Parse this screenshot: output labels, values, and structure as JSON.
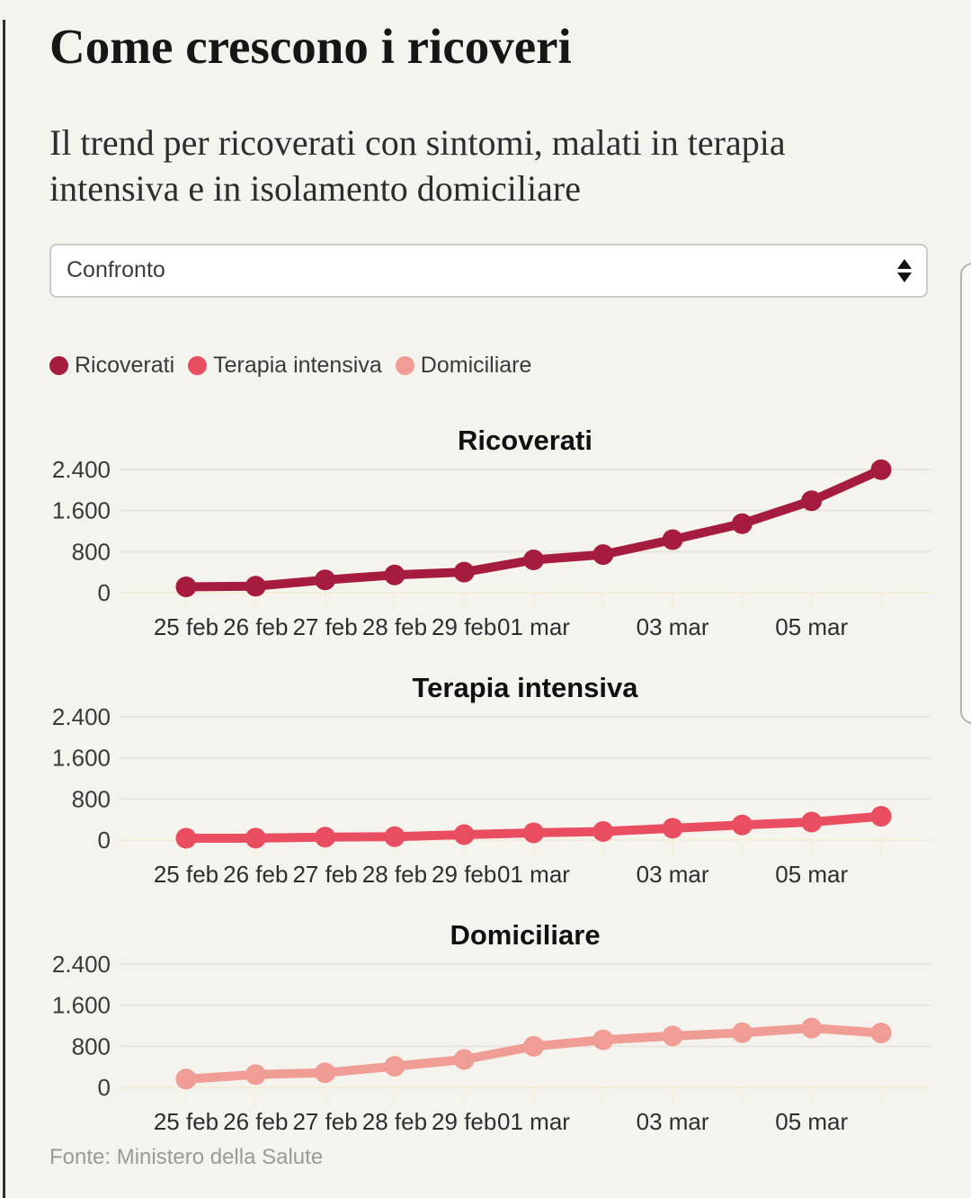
{
  "page": {
    "title": "Come crescono i ricoveri",
    "subtitle": "Il trend per ricoverati con sintomi, malati in terapia intensiva e in isolamento domiciliare",
    "source": "Fonte: Ministero della Salute",
    "background_color": "#f5f3ee"
  },
  "controls": {
    "view_select": {
      "value": "Confronto"
    }
  },
  "icons": {
    "select_spinner": "up-down-triangles"
  },
  "legend": [
    {
      "label": "Ricoverati",
      "color": "#a51c3e"
    },
    {
      "label": "Terapia intensiva",
      "color": "#e94d60"
    },
    {
      "label": "Domiciliare",
      "color": "#f09d96"
    }
  ],
  "chart_data": [
    {
      "type": "line",
      "title": "Ricoverati",
      "color": "#a51c3e",
      "x": [
        "25 feb",
        "26 feb",
        "27 feb",
        "28 feb",
        "29 feb",
        "01 mar",
        "02 mar",
        "03 mar",
        "04 mar",
        "05 mar",
        "06 mar"
      ],
      "values": [
        114,
        128,
        248,
        345,
        401,
        639,
        742,
        1034,
        1346,
        1790,
        2394
      ],
      "x_tick_labels": [
        "25 feb",
        "26 feb",
        "27 feb",
        "28 feb",
        "29 feb",
        "01 mar",
        "",
        "03 mar",
        "",
        "05 mar",
        ""
      ],
      "y_ticks": [
        0,
        800,
        1600,
        2400
      ],
      "y_tick_labels": [
        "0",
        "800",
        "1.600",
        "2.400"
      ],
      "ylim": [
        0,
        2400
      ],
      "grid": true,
      "marker": "circle",
      "legend_position": "top-shared"
    },
    {
      "type": "line",
      "title": "Terapia intensiva",
      "color": "#e94d60",
      "x": [
        "25 feb",
        "26 feb",
        "27 feb",
        "28 feb",
        "29 feb",
        "01 mar",
        "02 mar",
        "03 mar",
        "04 mar",
        "05 mar",
        "06 mar"
      ],
      "values": [
        35,
        36,
        56,
        64,
        105,
        140,
        166,
        229,
        295,
        351,
        462
      ],
      "x_tick_labels": [
        "25 feb",
        "26 feb",
        "27 feb",
        "28 feb",
        "29 feb",
        "01 mar",
        "",
        "03 mar",
        "",
        "05 mar",
        ""
      ],
      "y_ticks": [
        0,
        800,
        1600,
        2400
      ],
      "y_tick_labels": [
        "0",
        "800",
        "1.600",
        "2.400"
      ],
      "ylim": [
        0,
        2400
      ],
      "grid": true,
      "marker": "circle",
      "legend_position": "top-shared"
    },
    {
      "type": "line",
      "title": "Domiciliare",
      "color": "#f09d96",
      "x": [
        "25 feb",
        "26 feb",
        "27 feb",
        "28 feb",
        "29 feb",
        "01 mar",
        "02 mar",
        "03 mar",
        "04 mar",
        "05 mar",
        "06 mar"
      ],
      "values": [
        162,
        248,
        284,
        412,
        543,
        798,
        927,
        1000,
        1065,
        1155,
        1060
      ],
      "x_tick_labels": [
        "25 feb",
        "26 feb",
        "27 feb",
        "28 feb",
        "29 feb",
        "01 mar",
        "",
        "03 mar",
        "",
        "05 mar",
        ""
      ],
      "y_ticks": [
        0,
        800,
        1600,
        2400
      ],
      "y_tick_labels": [
        "0",
        "800",
        "1.600",
        "2.400"
      ],
      "ylim": [
        0,
        2400
      ],
      "grid": true,
      "marker": "circle",
      "legend_position": "top-shared"
    }
  ]
}
